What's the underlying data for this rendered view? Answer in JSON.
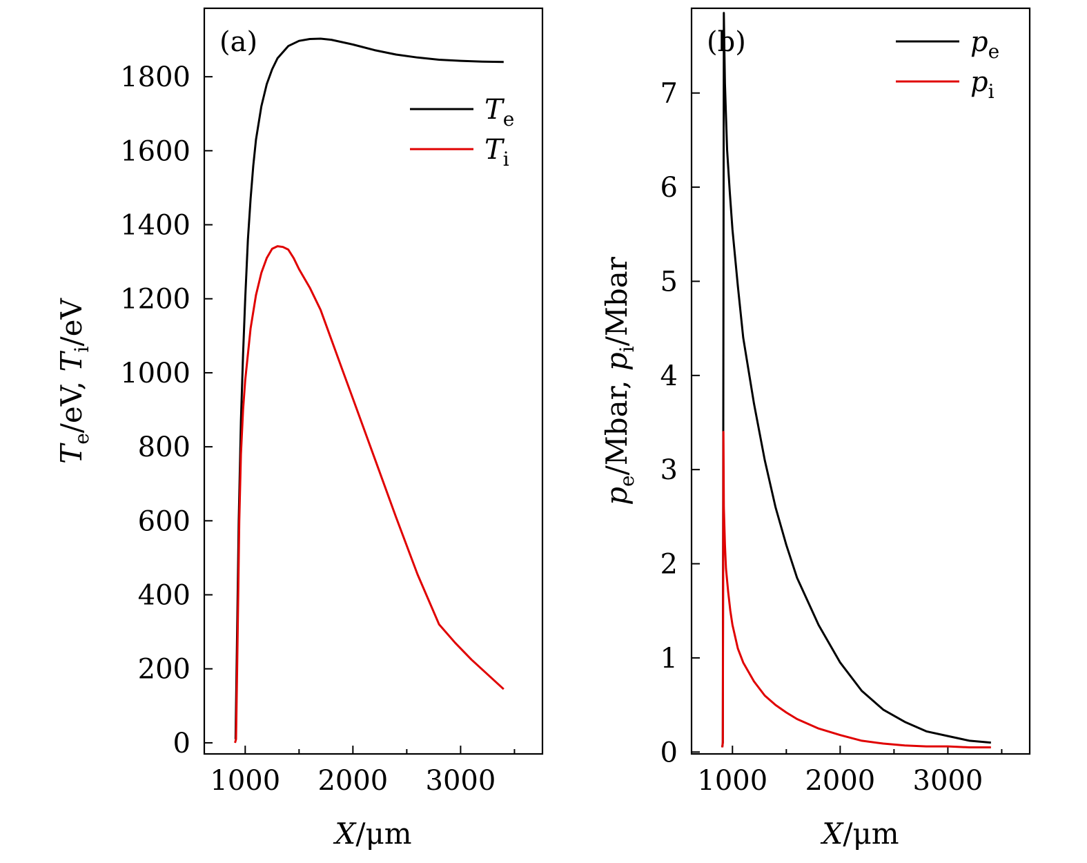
{
  "chart_data": [
    {
      "type": "line",
      "panel_label": "(a)",
      "xlabel": {
        "italic": "X",
        "rest": "/μm"
      },
      "ylabel": {
        "parts": [
          {
            "text": "T",
            "style": "italic"
          },
          {
            "text": "e",
            "style": "sub"
          },
          {
            "text": "/eV, ",
            "style": "normal"
          },
          {
            "text": "T",
            "style": "italic"
          },
          {
            "text": "i",
            "style": "sub"
          },
          {
            "text": "/eV",
            "style": "normal"
          }
        ]
      },
      "xlim": [
        620,
        3760
      ],
      "ylim": [
        -30,
        1985
      ],
      "x_ticks": [
        1000,
        2000,
        3000
      ],
      "x_tick_labels": [
        "1000",
        "2000",
        "3000"
      ],
      "x_minor_ticks": [
        1500,
        2500,
        3500
      ],
      "y_ticks": [
        0,
        200,
        400,
        600,
        800,
        1000,
        1200,
        1400,
        1600,
        1800
      ],
      "y_tick_labels": [
        "0",
        "200",
        "400",
        "600",
        "800",
        "1000",
        "1200",
        "1400",
        "1600",
        "1800"
      ],
      "grid": false,
      "legend_position": "top-right",
      "series": [
        {
          "name": {
            "main": "T",
            "sub": "e"
          },
          "color": "#000000",
          "x": [
            910,
            925,
            940,
            960,
            980,
            1000,
            1025,
            1050,
            1075,
            1100,
            1150,
            1200,
            1250,
            1300,
            1400,
            1500,
            1600,
            1700,
            1800,
            2000,
            2200,
            2400,
            2600,
            2800,
            3000,
            3200,
            3400
          ],
          "y": [
            10,
            300,
            600,
            870,
            1050,
            1200,
            1360,
            1470,
            1560,
            1630,
            1720,
            1780,
            1820,
            1850,
            1883,
            1897,
            1902,
            1903,
            1900,
            1887,
            1872,
            1860,
            1852,
            1846,
            1843,
            1841,
            1840
          ]
        },
        {
          "name": {
            "main": "T",
            "sub": "i"
          },
          "color": "#e00000",
          "x": [
            905,
            910,
            915,
            925,
            935,
            945,
            960,
            980,
            1000,
            1050,
            1100,
            1150,
            1200,
            1250,
            1300,
            1350,
            1400,
            1450,
            1500,
            1600,
            1700,
            1800,
            1900,
            2000,
            2200,
            2400,
            2600,
            2800,
            2950,
            3100,
            3400
          ],
          "y": [
            0,
            5,
            10,
            200,
            400,
            600,
            780,
            900,
            980,
            1120,
            1210,
            1270,
            1310,
            1335,
            1342,
            1340,
            1333,
            1310,
            1280,
            1230,
            1170,
            1090,
            1010,
            930,
            770,
            610,
            455,
            320,
            270,
            225,
            145
          ]
        }
      ]
    },
    {
      "type": "line",
      "panel_label": "(b)",
      "xlabel": {
        "italic": "X",
        "rest": "/μm"
      },
      "ylabel": {
        "parts": [
          {
            "text": "p",
            "style": "italic"
          },
          {
            "text": "e",
            "style": "sub"
          },
          {
            "text": "/Mbar, ",
            "style": "normal"
          },
          {
            "text": "p",
            "style": "italic"
          },
          {
            "text": "i",
            "style": "sub"
          },
          {
            "text": "/Mbar",
            "style": "normal"
          }
        ]
      },
      "xlim": [
        620,
        3760
      ],
      "ylim": [
        -0.02,
        7.9
      ],
      "x_ticks": [
        1000,
        2000,
        3000
      ],
      "x_tick_labels": [
        "1000",
        "2000",
        "3000"
      ],
      "x_minor_ticks": [
        1500,
        2500,
        3500
      ],
      "y_ticks": [
        0,
        1,
        2,
        3,
        4,
        5,
        6,
        7
      ],
      "y_tick_labels": [
        "0",
        "1",
        "2",
        "3",
        "4",
        "5",
        "6",
        "7"
      ],
      "grid": false,
      "legend_position": "top-right",
      "series": [
        {
          "name": {
            "main": "p",
            "sub": "e"
          },
          "color": "#000000",
          "x": [
            905,
            910,
            915,
            920,
            925,
            930,
            950,
            975,
            1000,
            1050,
            1100,
            1200,
            1300,
            1400,
            1500,
            1600,
            1800,
            2000,
            2200,
            2400,
            2600,
            2800,
            3000,
            3200,
            3400
          ],
          "y": [
            0.05,
            0.1,
            3.5,
            7.85,
            7.45,
            7.1,
            6.4,
            5.95,
            5.55,
            4.95,
            4.4,
            3.7,
            3.1,
            2.6,
            2.2,
            1.85,
            1.35,
            0.95,
            0.65,
            0.45,
            0.32,
            0.22,
            0.17,
            0.12,
            0.1
          ]
        },
        {
          "name": {
            "main": "p",
            "sub": "i"
          },
          "color": "#e00000",
          "x": [
            905,
            910,
            913,
            916,
            920,
            930,
            940,
            960,
            980,
            1000,
            1050,
            1100,
            1200,
            1300,
            1400,
            1500,
            1600,
            1800,
            2000,
            2200,
            2400,
            2600,
            2800,
            3000,
            3200,
            3400
          ],
          "y": [
            0.05,
            0.1,
            1.5,
            3.4,
            2.6,
            2.2,
            1.95,
            1.7,
            1.5,
            1.35,
            1.1,
            0.95,
            0.75,
            0.6,
            0.5,
            0.42,
            0.35,
            0.25,
            0.18,
            0.12,
            0.09,
            0.07,
            0.06,
            0.06,
            0.05,
            0.05
          ]
        }
      ]
    }
  ]
}
